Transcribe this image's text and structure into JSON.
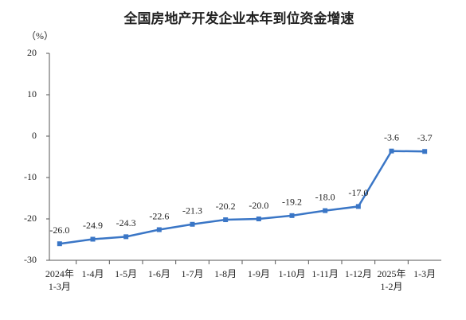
{
  "chart_data": {
    "type": "line",
    "title": "全国房地产开发企业本年到位资金增速",
    "y_unit": "（%）",
    "categories": [
      "2024年\n1-3月",
      "1-4月",
      "1-5月",
      "1-6月",
      "1-7月",
      "1-8月",
      "1-9月",
      "1-10月",
      "1-11月",
      "1-12月",
      "2025年\n1-2月",
      "1-3月"
    ],
    "values": [
      -26.0,
      -24.9,
      -24.3,
      -22.6,
      -21.3,
      -20.2,
      -20.0,
      -19.2,
      -18.0,
      -17.0,
      -3.6,
      -3.7
    ],
    "value_labels": [
      "-26.0",
      "-24.9",
      "-24.3",
      "-22.6",
      "-21.3",
      "-20.2",
      "-20.0",
      "-19.2",
      "-18.0",
      "-17.0",
      "-3.6",
      "-3.7"
    ],
    "color": "#3a76c6",
    "ylim": [
      -30,
      20
    ],
    "yticks": [
      -30,
      -20,
      -10,
      0,
      10,
      20
    ]
  }
}
